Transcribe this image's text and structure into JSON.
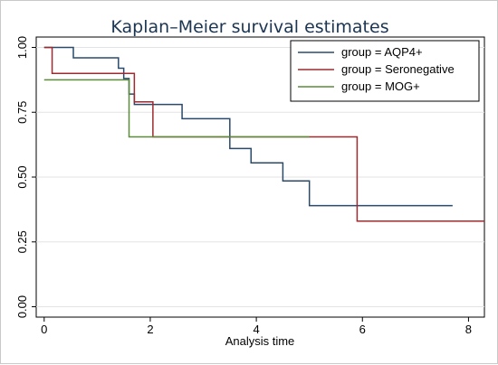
{
  "chart_data": {
    "type": "line",
    "title": "Kaplan–Meier survival estimates",
    "xlabel": "Analysis time",
    "ylabel": "",
    "xlim": [
      -0.15,
      8.3
    ],
    "ylim": [
      -0.04,
      1.04
    ],
    "xticks": [
      0,
      2,
      4,
      6,
      8
    ],
    "yticks": [
      0.0,
      0.25,
      0.5,
      0.75,
      1.0
    ],
    "ytick_labels": [
      "0.00",
      "0.25",
      "0.50",
      "0.75",
      "1.00"
    ],
    "grid": "horizontal",
    "legend_position": "top-right",
    "series": [
      {
        "name": "group = AQP4+",
        "color": "#2a4a6b",
        "steps": [
          [
            0,
            1.0
          ],
          [
            0.55,
            0.96
          ],
          [
            1.4,
            0.92
          ],
          [
            1.5,
            0.88
          ],
          [
            1.6,
            0.82
          ],
          [
            1.7,
            0.78
          ],
          [
            2.6,
            0.725
          ],
          [
            3.5,
            0.61
          ],
          [
            3.9,
            0.555
          ],
          [
            4.5,
            0.485
          ],
          [
            5.0,
            0.39
          ],
          [
            7.7,
            0.39
          ]
        ]
      },
      {
        "name": "group = Seronegative",
        "color": "#9e2a2f",
        "steps": [
          [
            0,
            1.0
          ],
          [
            0.15,
            0.9
          ],
          [
            1.7,
            0.79
          ],
          [
            2.05,
            0.655
          ],
          [
            5.9,
            0.33
          ],
          [
            8.3,
            0.33
          ]
        ]
      },
      {
        "name": "group = MOG+",
        "color": "#5a8c3a",
        "steps": [
          [
            0,
            0.875
          ],
          [
            1.6,
            0.655
          ],
          [
            5.0,
            0.655
          ]
        ]
      }
    ]
  }
}
